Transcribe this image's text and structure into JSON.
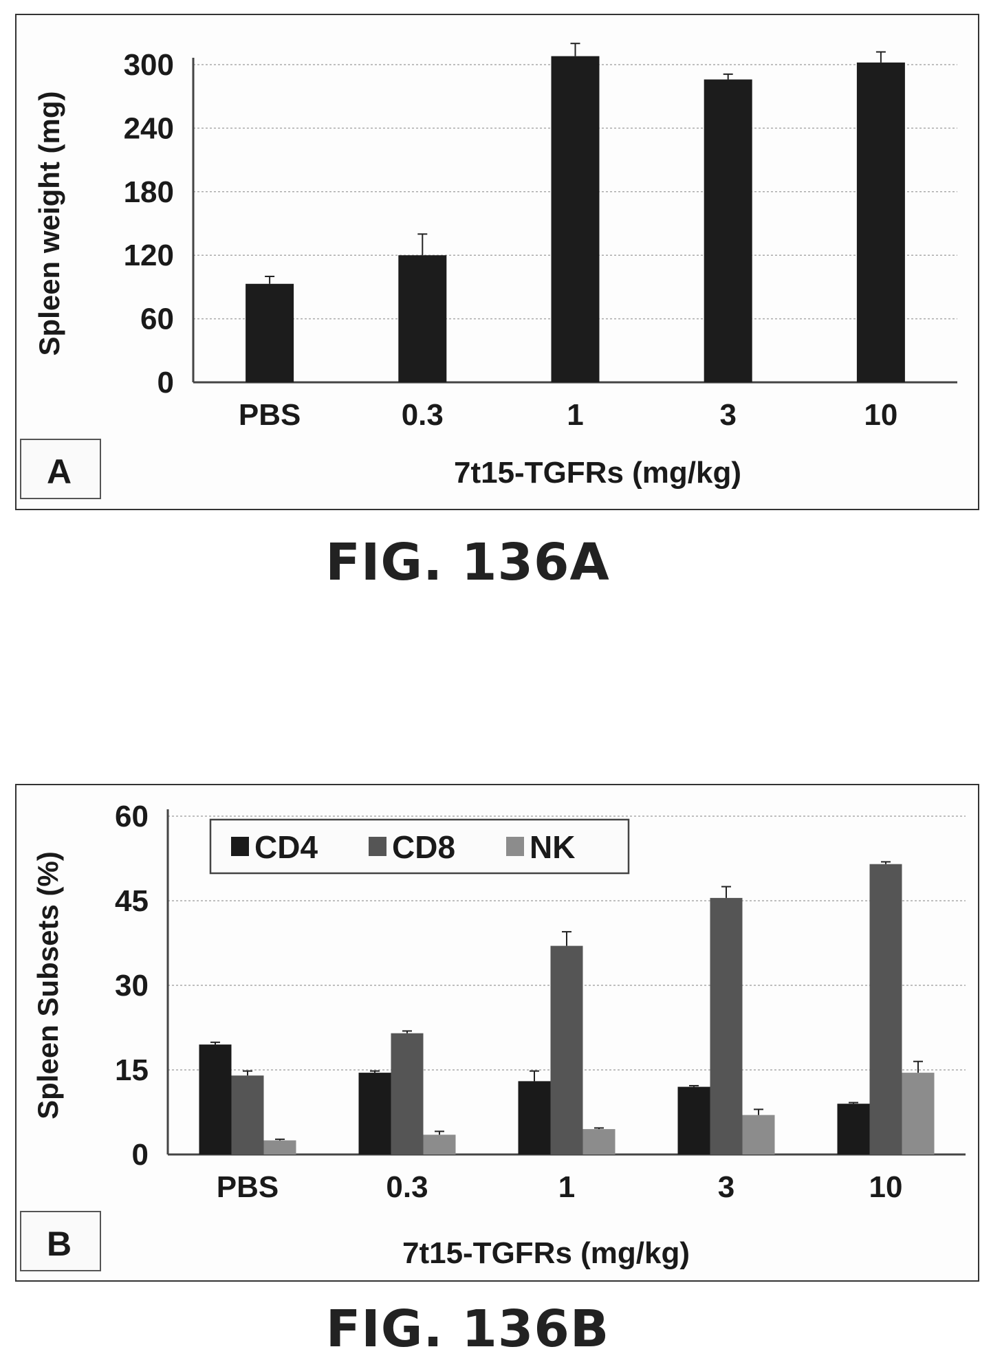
{
  "figures": [
    {
      "caption": "FIG. 136A",
      "panel_label": "A"
    },
    {
      "caption": "FIG. 136B",
      "panel_label": "B"
    }
  ],
  "chart_data": [
    {
      "type": "bar",
      "ylabel": "Spleen weight (mg)",
      "xlabel": "7t15-TGFRs (mg/kg)",
      "categories": [
        "PBS",
        "0.3",
        "1",
        "3",
        "10"
      ],
      "ylim": [
        0,
        300
      ],
      "yticks": [
        "0",
        "60",
        "120",
        "180",
        "240",
        "300"
      ],
      "grid": true,
      "legend": "none",
      "colors": {
        "bar": "#1c1c1c"
      },
      "series": [
        {
          "values": [
            93,
            120,
            308,
            286,
            302
          ],
          "errors": [
            7,
            20,
            12,
            5,
            10
          ]
        }
      ]
    },
    {
      "type": "bar",
      "ylabel": "Spleen Subsets (%)",
      "xlabel": "7t15-TGFRs (mg/kg)",
      "categories": [
        "PBS",
        "0.3",
        "1",
        "3",
        "10"
      ],
      "ylim": [
        0,
        60
      ],
      "yticks": [
        "0",
        "15",
        "30",
        "45",
        "60"
      ],
      "grid": true,
      "legend": "top-left",
      "colors": {
        "CD4": "#1a1a1a",
        "CD8": "#555555",
        "NK": "#8c8c8c"
      },
      "series": [
        {
          "name": "CD4",
          "values": [
            19.5,
            14.5,
            13,
            12,
            9
          ],
          "errors": [
            0.4,
            0.3,
            1.8,
            0.2,
            0.2
          ]
        },
        {
          "name": "CD8",
          "values": [
            14,
            21.5,
            37,
            45.5,
            51.5
          ],
          "errors": [
            0.8,
            0.4,
            2.5,
            2.0,
            0.4
          ]
        },
        {
          "name": "NK",
          "values": [
            2.5,
            3.5,
            4.5,
            7,
            14.5
          ],
          "errors": [
            0.2,
            0.6,
            0.2,
            1.0,
            2.0
          ]
        }
      ]
    }
  ]
}
